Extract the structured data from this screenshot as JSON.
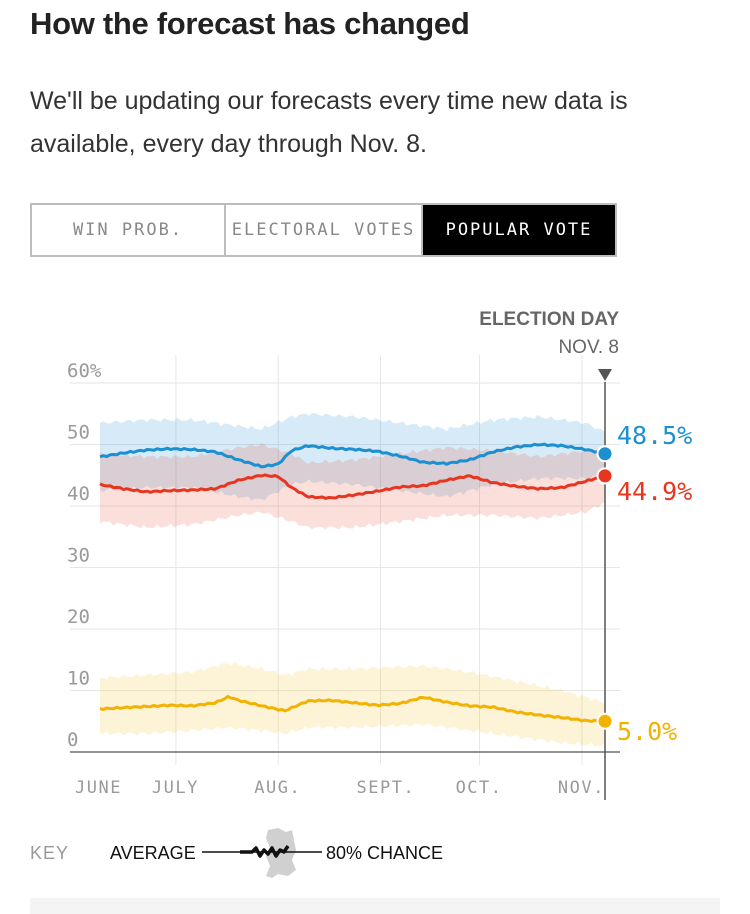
{
  "header": {
    "title": "How the forecast has changed",
    "description": "We'll be updating our forecasts every time new data is available, every day through Nov. 8."
  },
  "tabs": [
    {
      "label": "WIN PROB.",
      "active": false
    },
    {
      "label": "ELECTORAL VOTES",
      "active": false
    },
    {
      "label": "POPULAR VOTE",
      "active": true
    }
  ],
  "key": {
    "label": "KEY",
    "average_label": "AVERAGE",
    "chance_label": "80% CHANCE"
  },
  "chart_data": {
    "type": "line",
    "election_day_label": "ELECTION DAY",
    "election_day_date": "NOV. 8",
    "x_ticks": [
      "JUNE",
      "JULY",
      "AUG.",
      "SEPT.",
      "OCT.",
      "NOV."
    ],
    "y_ticks": [
      "60%",
      "50",
      "40",
      "30",
      "20",
      "10",
      "0"
    ],
    "ylim": [
      0,
      60
    ],
    "xlim": [
      "2016-06-08",
      "2016-11-08"
    ],
    "grid": true,
    "colors": {
      "clinton": "#1a8fd1",
      "trump": "#e8351f",
      "johnson": "#f2b200"
    },
    "series": [
      {
        "final_label": "48.5%",
        "color": "#1a8fd1",
        "points": [
          [
            "2016-06-08",
            48.0
          ],
          [
            "2016-06-15",
            48.6
          ],
          [
            "2016-06-22",
            49.1
          ],
          [
            "2016-06-29",
            49.3
          ],
          [
            "2016-07-06",
            49.2
          ],
          [
            "2016-07-13",
            48.8
          ],
          [
            "2016-07-20",
            47.5
          ],
          [
            "2016-07-27",
            46.4
          ],
          [
            "2016-08-01",
            46.8
          ],
          [
            "2016-08-05",
            49.0
          ],
          [
            "2016-08-10",
            49.8
          ],
          [
            "2016-08-17",
            49.4
          ],
          [
            "2016-08-24",
            49.2
          ],
          [
            "2016-08-31",
            48.9
          ],
          [
            "2016-09-07",
            48.1
          ],
          [
            "2016-09-14",
            47.1
          ],
          [
            "2016-09-21",
            46.9
          ],
          [
            "2016-09-28",
            47.5
          ],
          [
            "2016-10-05",
            48.8
          ],
          [
            "2016-10-12",
            49.6
          ],
          [
            "2016-10-19",
            50.0
          ],
          [
            "2016-10-26",
            49.8
          ],
          [
            "2016-11-02",
            49.2
          ],
          [
            "2016-11-08",
            48.5
          ]
        ],
        "band": [
          [
            "2016-06-08",
            42.5,
            53.5
          ],
          [
            "2016-06-22",
            43.0,
            54.0
          ],
          [
            "2016-07-06",
            43.0,
            54.0
          ],
          [
            "2016-07-20",
            41.5,
            53.0
          ],
          [
            "2016-07-27",
            41.0,
            52.5
          ],
          [
            "2016-08-05",
            43.5,
            54.5
          ],
          [
            "2016-08-10",
            44.0,
            55.0
          ],
          [
            "2016-08-24",
            43.5,
            54.5
          ],
          [
            "2016-09-07",
            42.5,
            53.5
          ],
          [
            "2016-09-21",
            41.5,
            52.5
          ],
          [
            "2016-10-05",
            43.5,
            54.0
          ],
          [
            "2016-10-19",
            44.5,
            54.5
          ],
          [
            "2016-11-02",
            44.5,
            53.5
          ],
          [
            "2016-11-08",
            45.0,
            52.0
          ]
        ]
      },
      {
        "final_label": "44.9%",
        "color": "#e8351f",
        "points": [
          [
            "2016-06-08",
            43.5
          ],
          [
            "2016-06-15",
            42.8
          ],
          [
            "2016-06-22",
            42.3
          ],
          [
            "2016-06-29",
            42.5
          ],
          [
            "2016-07-06",
            42.6
          ],
          [
            "2016-07-13",
            42.8
          ],
          [
            "2016-07-20",
            44.2
          ],
          [
            "2016-07-27",
            45.0
          ],
          [
            "2016-08-01",
            44.8
          ],
          [
            "2016-08-05",
            43.0
          ],
          [
            "2016-08-10",
            41.5
          ],
          [
            "2016-08-17",
            41.3
          ],
          [
            "2016-08-24",
            41.8
          ],
          [
            "2016-08-31",
            42.4
          ],
          [
            "2016-09-07",
            43.1
          ],
          [
            "2016-09-14",
            43.3
          ],
          [
            "2016-09-21",
            44.2
          ],
          [
            "2016-09-28",
            44.9
          ],
          [
            "2016-10-05",
            43.8
          ],
          [
            "2016-10-12",
            43.2
          ],
          [
            "2016-10-19",
            42.8
          ],
          [
            "2016-10-26",
            43.0
          ],
          [
            "2016-11-02",
            44.0
          ],
          [
            "2016-11-08",
            44.9
          ]
        ],
        "band": [
          [
            "2016-06-08",
            37.5,
            48.5
          ],
          [
            "2016-06-22",
            36.5,
            48.0
          ],
          [
            "2016-07-06",
            37.0,
            48.0
          ],
          [
            "2016-07-20",
            38.5,
            49.5
          ],
          [
            "2016-07-27",
            39.0,
            50.0
          ],
          [
            "2016-08-05",
            37.5,
            48.5
          ],
          [
            "2016-08-10",
            36.5,
            47.0
          ],
          [
            "2016-08-24",
            36.5,
            47.5
          ],
          [
            "2016-09-07",
            37.5,
            48.5
          ],
          [
            "2016-09-21",
            38.5,
            49.5
          ],
          [
            "2016-10-05",
            38.5,
            49.0
          ],
          [
            "2016-10-19",
            38.0,
            48.0
          ],
          [
            "2016-11-02",
            39.0,
            49.0
          ],
          [
            "2016-11-08",
            40.5,
            49.0
          ]
        ]
      },
      {
        "final_label": "5.0%",
        "color": "#f2b200",
        "points": [
          [
            "2016-06-08",
            7.0
          ],
          [
            "2016-06-15",
            7.2
          ],
          [
            "2016-06-22",
            7.4
          ],
          [
            "2016-06-29",
            7.6
          ],
          [
            "2016-07-06",
            7.5
          ],
          [
            "2016-07-13",
            8.0
          ],
          [
            "2016-07-17",
            9.0
          ],
          [
            "2016-07-20",
            8.4
          ],
          [
            "2016-07-27",
            7.5
          ],
          [
            "2016-08-03",
            6.7
          ],
          [
            "2016-08-10",
            8.3
          ],
          [
            "2016-08-17",
            8.4
          ],
          [
            "2016-08-24",
            8.0
          ],
          [
            "2016-08-31",
            7.6
          ],
          [
            "2016-09-07",
            7.9
          ],
          [
            "2016-09-14",
            8.9
          ],
          [
            "2016-09-21",
            8.1
          ],
          [
            "2016-09-28",
            7.5
          ],
          [
            "2016-10-05",
            7.3
          ],
          [
            "2016-10-12",
            6.5
          ],
          [
            "2016-10-19",
            6.0
          ],
          [
            "2016-10-26",
            5.6
          ],
          [
            "2016-11-02",
            5.1
          ],
          [
            "2016-11-08",
            5.0
          ]
        ],
        "band": [
          [
            "2016-06-08",
            3.0,
            12.0
          ],
          [
            "2016-06-22",
            3.0,
            12.5
          ],
          [
            "2016-07-06",
            3.5,
            13.0
          ],
          [
            "2016-07-17",
            4.0,
            14.5
          ],
          [
            "2016-07-27",
            3.5,
            13.5
          ],
          [
            "2016-08-03",
            3.0,
            12.5
          ],
          [
            "2016-08-10",
            4.0,
            13.5
          ],
          [
            "2016-08-24",
            4.0,
            13.5
          ],
          [
            "2016-09-14",
            4.5,
            14.0
          ],
          [
            "2016-09-28",
            3.5,
            13.0
          ],
          [
            "2016-10-12",
            2.5,
            11.5
          ],
          [
            "2016-10-26",
            1.5,
            10.0
          ],
          [
            "2016-11-08",
            1.0,
            8.0
          ]
        ]
      }
    ]
  }
}
